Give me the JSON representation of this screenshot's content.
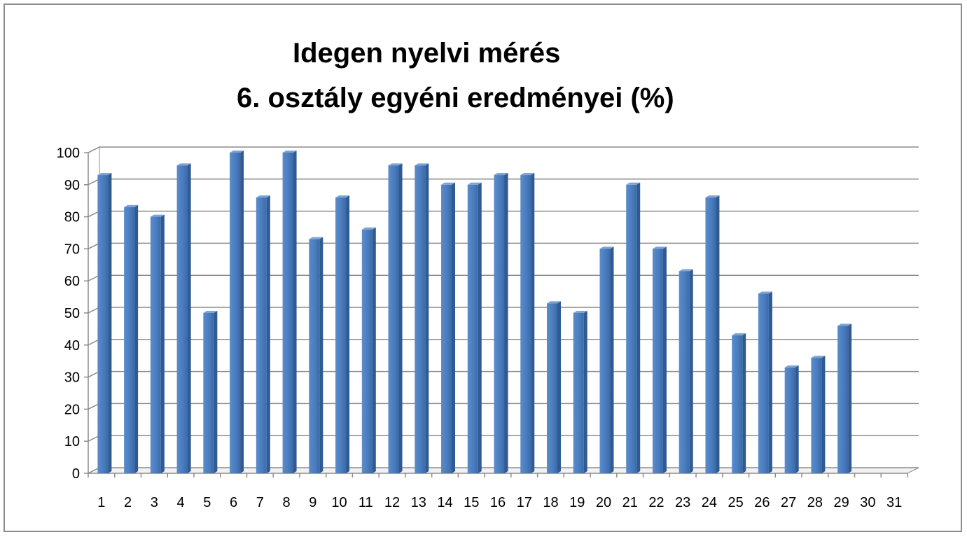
{
  "chart_data": {
    "type": "bar",
    "title": "Idegen nyelvi mérés",
    "subtitle": "6. osztály egyéni eredményei (%)",
    "xlabel": "",
    "ylabel": "",
    "ylim": [
      0,
      100
    ],
    "yticks": [
      "0",
      "10",
      "20",
      "30",
      "40",
      "50",
      "60",
      "70",
      "80",
      "90",
      "100"
    ],
    "categories": [
      "1",
      "2",
      "3",
      "4",
      "5",
      "6",
      "7",
      "8",
      "9",
      "10",
      "11",
      "12",
      "13",
      "14",
      "15",
      "16",
      "17",
      "18",
      "19",
      "20",
      "21",
      "22",
      "23",
      "24",
      "25",
      "26",
      "27",
      "28",
      "29",
      "30",
      "31"
    ],
    "values": [
      93,
      83,
      80,
      96,
      50,
      100,
      86,
      100,
      73,
      86,
      76,
      96,
      96,
      90,
      90,
      93,
      93,
      53,
      50,
      70,
      90,
      70,
      63,
      86,
      43,
      56,
      33,
      36,
      46,
      null,
      null
    ],
    "grid": true,
    "legend": "none",
    "bar_color": "#4f81bd",
    "three_d": true
  }
}
